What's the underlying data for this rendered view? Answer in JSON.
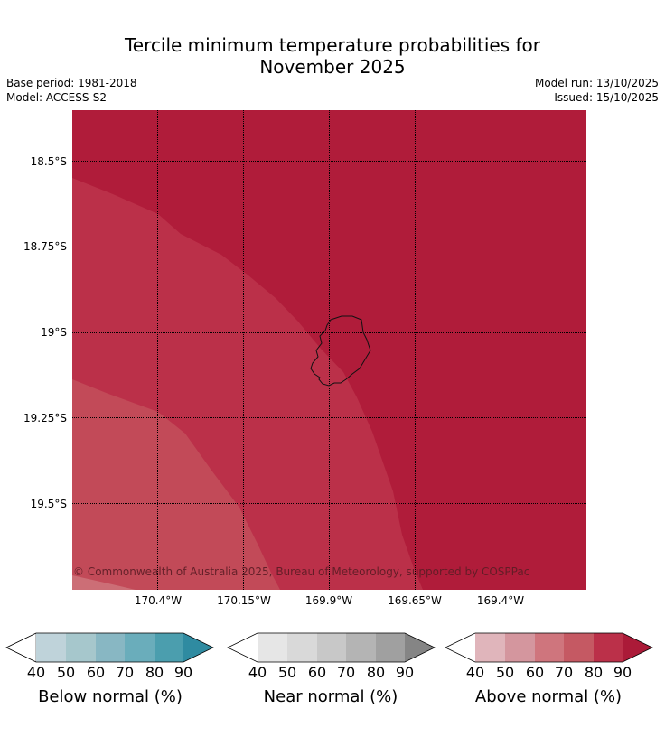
{
  "title": {
    "line1": "Tercile minimum temperature probabilities for",
    "line2": "November 2025"
  },
  "meta": {
    "base_period": "Base period: 1981-2018",
    "model": "Model: ACCESS-S2",
    "model_run": "Model run: 13/10/2025",
    "issued": "Issued: 15/10/2025"
  },
  "map": {
    "lat_labels": [
      "18.5°S",
      "18.75°S",
      "19°S",
      "19.25°S",
      "19.5°S"
    ],
    "lon_labels": [
      "170.4°W",
      "170.15°W",
      "169.9°W",
      "169.65°W",
      "169.4°W"
    ],
    "copyright": "© Commonwealth of Australia 2025, Bureau of Meteorology, supported by COSPPac",
    "colors": {
      "zone_90": "#b01c3a",
      "zone_80": "#bb3049",
      "zone_70": "#c24a58",
      "zone_60": "#cc6e76"
    }
  },
  "colorbars": [
    {
      "title": "Below normal (%)",
      "ticks": [
        "40",
        "50",
        "60",
        "70",
        "80",
        "90"
      ],
      "colors": [
        "#ffffff",
        "#bfd3da",
        "#a6c7cc",
        "#88b7c3",
        "#6aadbb",
        "#4b9eae",
        "#2f8ba1"
      ]
    },
    {
      "title": "Near normal (%)",
      "ticks": [
        "40",
        "50",
        "60",
        "70",
        "80",
        "90"
      ],
      "colors": [
        "#ffffff",
        "#e6e6e6",
        "#d9d9d9",
        "#c8c8c8",
        "#b4b4b4",
        "#a0a0a0",
        "#858585"
      ]
    },
    {
      "title": "Above normal (%)",
      "ticks": [
        "40",
        "50",
        "60",
        "70",
        "80",
        "90"
      ],
      "colors": [
        "#ffffff",
        "#e0b5bb",
        "#d4969e",
        "#cf757d",
        "#c55963",
        "#bb3049",
        "#ab1a38"
      ]
    }
  ]
}
